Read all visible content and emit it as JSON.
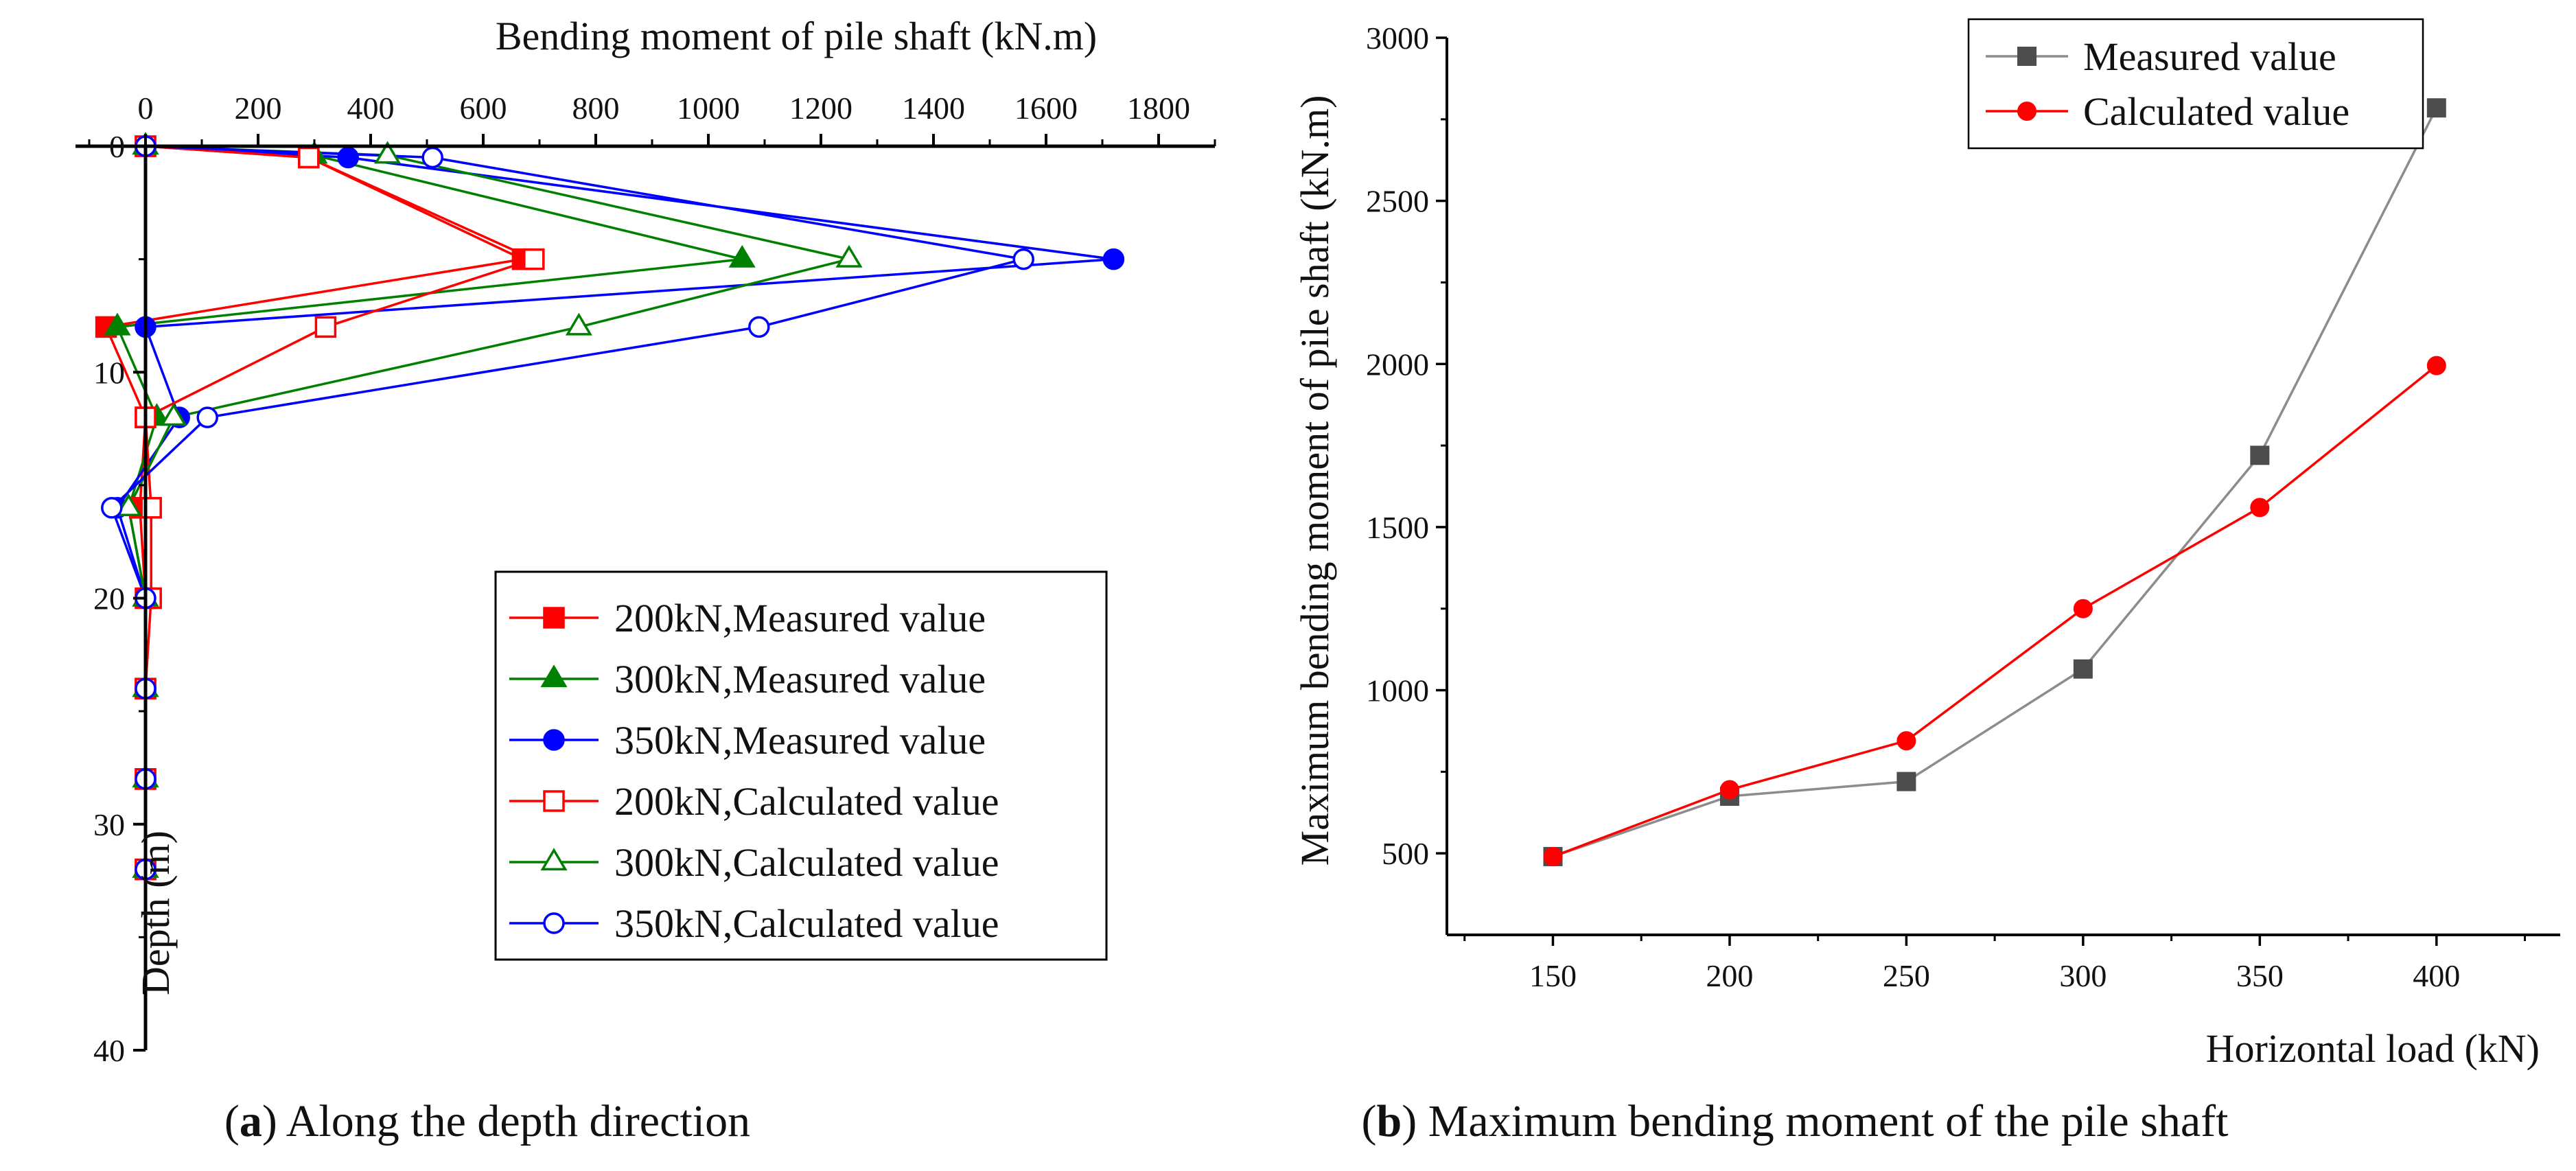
{
  "chart_data": [
    {
      "id": "a",
      "type": "line",
      "orientation": "depth-profile",
      "caption_letter": "a",
      "caption_text": "Along the depth direction",
      "xlabel": "Bending moment of pile shaft (kN.m)",
      "ylabel": "Depth (m)",
      "xlim": [
        -100,
        1900
      ],
      "ylim": [
        0,
        40
      ],
      "y_inverted": true,
      "x_axis_position": "top",
      "xticks": [
        0,
        200,
        400,
        600,
        800,
        1000,
        1200,
        1400,
        1600,
        1800
      ],
      "yticks": [
        0,
        10,
        20,
        30,
        40
      ],
      "legend_position": "bottom-right",
      "series": [
        {
          "name": "200kN,Measured value",
          "color": "#ff0000",
          "marker": "square",
          "filled": true,
          "points": [
            [
              0,
              0
            ],
            [
              290,
              0.5
            ],
            [
              670,
              5
            ],
            [
              -70,
              8
            ],
            [
              0,
              12
            ],
            [
              -10,
              16
            ],
            [
              0,
              20
            ],
            [
              0,
              24
            ],
            [
              0,
              28
            ],
            [
              0,
              32
            ]
          ]
        },
        {
          "name": "300kN,Measured value",
          "color": "#008000",
          "marker": "triangle",
          "filled": true,
          "points": [
            [
              0,
              0
            ],
            [
              300,
              0.4
            ],
            [
              1060,
              5
            ],
            [
              -50,
              8
            ],
            [
              20,
              12
            ],
            [
              -30,
              16
            ],
            [
              0,
              20
            ],
            [
              0,
              24
            ],
            [
              0,
              28
            ],
            [
              0,
              32
            ]
          ]
        },
        {
          "name": "350kN,Measured value",
          "color": "#0000ff",
          "marker": "circle",
          "filled": true,
          "points": [
            [
              0,
              0
            ],
            [
              360,
              0.5
            ],
            [
              1720,
              5
            ],
            [
              0,
              8
            ],
            [
              60,
              12
            ],
            [
              -50,
              16
            ],
            [
              0,
              20
            ],
            [
              0,
              24
            ],
            [
              0,
              28
            ],
            [
              0,
              32
            ]
          ]
        },
        {
          "name": "200kN,Calculated value",
          "color": "#ff0000",
          "marker": "square",
          "filled": false,
          "points": [
            [
              0,
              0
            ],
            [
              290,
              0.5
            ],
            [
              690,
              5
            ],
            [
              320,
              8
            ],
            [
              0,
              12
            ],
            [
              10,
              16
            ],
            [
              10,
              20
            ],
            [
              0,
              24
            ],
            [
              0,
              28
            ],
            [
              0,
              32
            ]
          ]
        },
        {
          "name": "300kN,Calculated value",
          "color": "#008000",
          "marker": "triangle",
          "filled": false,
          "points": [
            [
              0,
              0
            ],
            [
              430,
              0.4
            ],
            [
              1250,
              5
            ],
            [
              770,
              8
            ],
            [
              50,
              12
            ],
            [
              -30,
              16
            ],
            [
              0,
              20
            ],
            [
              0,
              24
            ],
            [
              0,
              28
            ],
            [
              0,
              32
            ]
          ]
        },
        {
          "name": "350kN,Calculated value",
          "color": "#0000ff",
          "marker": "circle",
          "filled": false,
          "points": [
            [
              0,
              0
            ],
            [
              510,
              0.5
            ],
            [
              1560,
              5
            ],
            [
              1090,
              8
            ],
            [
              110,
              12
            ],
            [
              -60,
              16
            ],
            [
              0,
              20
            ],
            [
              0,
              24
            ],
            [
              0,
              28
            ],
            [
              0,
              32
            ]
          ]
        }
      ]
    },
    {
      "id": "b",
      "type": "line",
      "caption_letter": "b",
      "caption_text": "Maximum bending moment of the pile shaft",
      "xlabel": "Horizontal load (kN)",
      "ylabel": "Maximum bending moment of pile shaft (kN.m)",
      "xlim": [
        120,
        435
      ],
      "ylim": [
        250,
        3000
      ],
      "xticks": [
        150,
        200,
        250,
        300,
        350,
        400
      ],
      "yticks": [
        500,
        1000,
        1500,
        2000,
        2500,
        3000
      ],
      "legend_position": "top-right",
      "series": [
        {
          "name": "Measured value",
          "color": "#4d4d4d",
          "line_color": "#8c8c8c",
          "marker": "square",
          "filled": true,
          "x": [
            150,
            200,
            250,
            300,
            350,
            400
          ],
          "y": [
            490,
            675,
            720,
            1065,
            1720,
            2785
          ]
        },
        {
          "name": "Calculated value",
          "color": "#ff0000",
          "line_color": "#ff0000",
          "marker": "circle",
          "filled": true,
          "x": [
            150,
            200,
            250,
            300,
            350,
            400
          ],
          "y": [
            490,
            695,
            845,
            1250,
            1560,
            1995
          ]
        }
      ]
    }
  ]
}
